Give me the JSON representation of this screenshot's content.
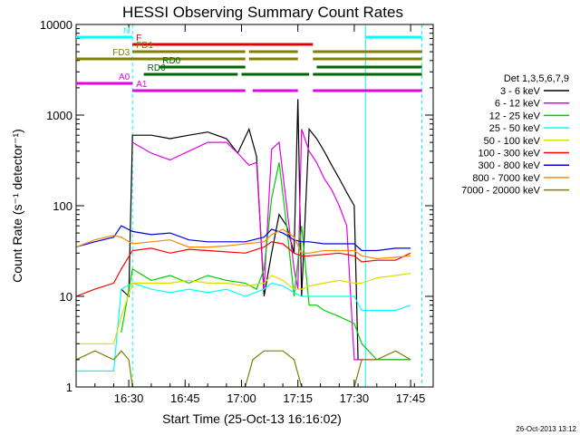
{
  "chart_data": {
    "type": "line",
    "title": "HESSI Observing Summary Count Rates",
    "xlabel": "Start Time (25-Oct-13 16:16:02)",
    "ylabel": "Count Rate (s⁻¹ detector⁻¹)",
    "ylog": true,
    "ylim": [
      1,
      10000
    ],
    "xlim_minutes": [
      0,
      95
    ],
    "xticks": [
      {
        "label": "16:30",
        "t": 14
      },
      {
        "label": "16:45",
        "t": 29
      },
      {
        "label": "17:00",
        "t": 44
      },
      {
        "label": "17:15",
        "t": 59
      },
      {
        "label": "17:30",
        "t": 74
      },
      {
        "label": "17:45",
        "t": 89
      }
    ],
    "yticks": [
      {
        "label": "1",
        "v": 1
      },
      {
        "label": "10",
        "v": 10
      },
      {
        "label": "100",
        "v": 100
      },
      {
        "label": "1000",
        "v": 1000
      },
      {
        "label": "10000",
        "v": 10000
      }
    ],
    "legend_title": "Det 1,3,5,6,7,9",
    "series": [
      {
        "name": "3 - 6 keV",
        "color": "#000000",
        "x": [
          12,
          14,
          15,
          20,
          25,
          30,
          35,
          40,
          43,
          46,
          48,
          50,
          52,
          54,
          56,
          58,
          59,
          60,
          62,
          64,
          66,
          68,
          70,
          72,
          74,
          75
        ],
        "y": [
          12,
          10,
          600,
          600,
          550,
          600,
          650,
          550,
          380,
          700,
          350,
          10,
          30,
          80,
          60,
          30,
          1500,
          10,
          700,
          550,
          400,
          280,
          200,
          140,
          100,
          2
        ]
      },
      {
        "name": "6 - 12 keV",
        "color": "#e600e6",
        "x": [
          15,
          20,
          25,
          30,
          35,
          40,
          43,
          46,
          48,
          50,
          52,
          54,
          56,
          58,
          59,
          60,
          62,
          64,
          66,
          68,
          70,
          72,
          74,
          76,
          80,
          85,
          89
        ],
        "y": [
          500,
          380,
          320,
          400,
          500,
          500,
          380,
          280,
          300,
          12,
          420,
          500,
          100,
          20,
          12,
          700,
          400,
          300,
          200,
          150,
          100,
          60,
          2,
          2,
          2,
          2,
          2
        ]
      },
      {
        "name": "12 - 25 keV",
        "color": "#00cc00",
        "x": [
          12,
          15,
          20,
          25,
          30,
          35,
          40,
          45,
          48,
          50,
          52,
          54,
          56,
          58,
          60,
          62,
          64,
          66,
          70,
          74,
          76,
          80,
          85,
          89
        ],
        "y": [
          4,
          20,
          15,
          17,
          14,
          17,
          15,
          14,
          12,
          20,
          120,
          300,
          60,
          10,
          60,
          8,
          8,
          7,
          6,
          5,
          3,
          2,
          2,
          2
        ]
      },
      {
        "name": "25 - 50 keV",
        "color": "#00ffff",
        "x": [
          0,
          10,
          12,
          15,
          20,
          25,
          30,
          35,
          40,
          45,
          50,
          52,
          55,
          58,
          60,
          62,
          66,
          70,
          74,
          76,
          80,
          85,
          89
        ],
        "y": [
          1.5,
          1.5,
          12,
          14,
          12,
          11,
          12,
          11,
          12,
          10,
          12,
          14,
          13,
          11,
          10,
          10,
          10,
          10,
          10,
          7,
          7,
          7,
          8
        ]
      },
      {
        "name": "50 - 100 keV",
        "color": "#dddd00",
        "x": [
          0,
          5,
          10,
          12,
          15,
          20,
          25,
          30,
          35,
          40,
          45,
          50,
          52,
          55,
          58,
          60,
          62,
          66,
          70,
          74,
          76,
          80,
          85,
          89
        ],
        "y": [
          3,
          3,
          3,
          6,
          14,
          14,
          14,
          15,
          14,
          14,
          13,
          14,
          17,
          15,
          12,
          12,
          13,
          14,
          15,
          14,
          14,
          16,
          17,
          18
        ]
      },
      {
        "name": "100 - 300 keV",
        "color": "#ff0000",
        "x": [
          0,
          5,
          10,
          12,
          15,
          20,
          25,
          30,
          35,
          40,
          45,
          50,
          52,
          55,
          58,
          60,
          62,
          66,
          70,
          74,
          76,
          80,
          85,
          89
        ],
        "y": [
          10,
          12,
          14,
          20,
          32,
          34,
          30,
          33,
          32,
          31,
          30,
          35,
          40,
          38,
          30,
          28,
          28,
          29,
          30,
          28,
          24,
          25,
          25,
          30
        ]
      },
      {
        "name": "300 - 800 keV",
        "color": "#0000dd",
        "x": [
          0,
          5,
          10,
          12,
          15,
          20,
          25,
          30,
          35,
          40,
          45,
          50,
          52,
          55,
          58,
          60,
          62,
          66,
          70,
          74,
          76,
          80,
          85,
          89
        ],
        "y": [
          35,
          40,
          45,
          60,
          52,
          48,
          50,
          42,
          40,
          40,
          40,
          45,
          55,
          50,
          42,
          40,
          40,
          38,
          38,
          38,
          32,
          32,
          34,
          34
        ]
      },
      {
        "name": "800 - 7000 keV",
        "color": "#ff8800",
        "x": [
          0,
          5,
          10,
          12,
          15,
          20,
          25,
          30,
          35,
          40,
          45,
          50,
          52,
          55,
          58,
          60,
          62,
          66,
          70,
          74,
          76,
          80,
          85,
          89
        ],
        "y": [
          35,
          42,
          47,
          45,
          38,
          40,
          42,
          35,
          35,
          36,
          38,
          40,
          48,
          55,
          45,
          30,
          30,
          32,
          32,
          32,
          28,
          26,
          27,
          28
        ]
      },
      {
        "name": "7000 - 20000 keV",
        "color": "#7f7f00",
        "x": [
          0,
          5,
          10,
          12,
          14,
          15,
          20,
          25,
          30,
          35,
          40,
          45,
          47,
          50,
          52,
          55,
          58,
          60,
          62,
          66,
          70,
          74,
          76,
          80,
          85,
          89
        ],
        "y": [
          2,
          2.5,
          2,
          2.5,
          2,
          1,
          1,
          1,
          1,
          1,
          1,
          1,
          2,
          2.5,
          2.5,
          2.5,
          2,
          1,
          1,
          1,
          1,
          1,
          2,
          2,
          2.5,
          2
        ]
      }
    ],
    "flags": [
      {
        "label": "N",
        "color": "#00ffff",
        "segments": [
          [
            0,
            15
          ],
          [
            77,
            92
          ]
        ]
      },
      {
        "label": "F",
        "color": "#dd0000",
        "segments": [
          [
            15,
            63
          ]
        ]
      },
      {
        "label": "FD1",
        "color": "#7f7f00",
        "segments": [
          [
            15,
            45
          ],
          [
            46,
            59
          ],
          [
            63,
            92
          ]
        ]
      },
      {
        "label": "FD3",
        "color": "#7f7f00",
        "segments": [
          [
            0,
            15
          ],
          [
            15,
            45
          ],
          [
            46,
            59
          ],
          [
            63,
            92
          ]
        ]
      },
      {
        "label": "RD0",
        "color": "#006600",
        "segments": [
          [
            22,
            45
          ],
          [
            64,
            92
          ]
        ]
      },
      {
        "label": "RD6",
        "color": "#006600",
        "segments": [
          [
            18,
            43
          ],
          [
            44,
            62
          ],
          [
            63,
            92
          ]
        ]
      },
      {
        "label": "A0",
        "color": "#e600e6",
        "segments": [
          [
            0,
            15
          ]
        ]
      },
      {
        "label": "A1",
        "color": "#e600e6",
        "segments": [
          [
            15,
            45
          ],
          [
            47,
            59
          ],
          [
            63,
            92
          ]
        ]
      }
    ],
    "vlines": [
      {
        "t": 15,
        "color": "#00ffff",
        "style": "dashed"
      },
      {
        "t": 77,
        "color": "#00ffff",
        "style": "solid"
      },
      {
        "t": 92,
        "color": "#00ffff",
        "style": "dashed"
      }
    ],
    "footer": "26-Oct-2013 13:12"
  }
}
